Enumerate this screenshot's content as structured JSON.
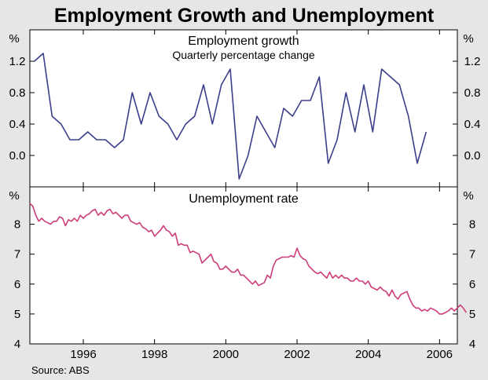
{
  "chart_data": {
    "title": "Employment Growth and Unemployment",
    "source": "Source: ABS",
    "x_ticks": [
      "1996",
      "1998",
      "2000",
      "2002",
      "2004",
      "2006"
    ],
    "x_range": [
      1994.5,
      2006.5
    ],
    "colors": {
      "growth_line": "#3b3e8a",
      "unemployment_line": "#cc3d7a",
      "background": "#e6e6e6"
    },
    "panels": [
      {
        "type": "line",
        "title": "Employment growth",
        "subtitle": "Quarterly percentage change",
        "unit_label": "%",
        "ylim": [
          -0.4,
          1.6
        ],
        "y_ticks": [
          "1.2",
          "0.8",
          "0.4",
          "0.0"
        ],
        "series": [
          {
            "name": "Employment growth",
            "x": [
              1994.625,
              1994.875,
              1995.125,
              1995.375,
              1995.625,
              1995.875,
              1996.125,
              1996.375,
              1996.625,
              1996.875,
              1997.125,
              1997.375,
              1997.625,
              1997.875,
              1998.125,
              1998.375,
              1998.625,
              1998.875,
              1999.125,
              1999.375,
              1999.625,
              1999.875,
              2000.125,
              2000.375,
              2000.625,
              2000.875,
              2001.125,
              2001.375,
              2001.625,
              2001.875,
              2002.125,
              2002.375,
              2002.625,
              2002.875,
              2003.125,
              2003.375,
              2003.625,
              2003.875,
              2004.125,
              2004.375,
              2004.625,
              2004.875,
              2005.125,
              2005.375,
              2005.625,
              2005.875
            ],
            "values": [
              1.2,
              1.3,
              0.5,
              0.4,
              0.2,
              0.2,
              0.3,
              0.2,
              0.2,
              0.1,
              0.2,
              0.8,
              0.4,
              0.8,
              0.5,
              0.4,
              0.2,
              0.4,
              0.5,
              0.9,
              0.4,
              0.9,
              1.1,
              -0.3,
              0.0,
              0.5,
              0.3,
              0.1,
              0.6,
              0.5,
              0.7,
              0.7,
              1.0,
              -0.1,
              0.2,
              0.8,
              0.3,
              0.9,
              0.3,
              1.1,
              1.0,
              0.9,
              0.5,
              -0.1,
              0.3,
              null
            ]
          }
        ]
      },
      {
        "type": "line",
        "title": "Unemployment rate",
        "unit_label": "%",
        "ylim": [
          4,
          9.25
        ],
        "y_ticks": [
          "8",
          "7",
          "6",
          "5",
          "4"
        ],
        "series": [
          {
            "name": "Unemployment rate",
            "x_start": 1994.5,
            "x_step": 0.08333,
            "values": [
              8.7,
              8.6,
              8.3,
              8.1,
              8.2,
              8.1,
              8.05,
              8.0,
              8.1,
              8.1,
              8.25,
              8.2,
              7.95,
              8.15,
              8.1,
              8.2,
              8.1,
              8.3,
              8.2,
              8.3,
              8.35,
              8.45,
              8.5,
              8.3,
              8.4,
              8.3,
              8.45,
              8.5,
              8.35,
              8.4,
              8.3,
              8.2,
              8.3,
              8.3,
              8.1,
              8.05,
              8.0,
              8.05,
              7.9,
              7.85,
              7.75,
              7.8,
              7.6,
              7.7,
              7.8,
              7.95,
              7.8,
              7.75,
              7.6,
              7.7,
              7.3,
              7.35,
              7.3,
              7.3,
              7.05,
              7.1,
              7.05,
              7.0,
              6.7,
              6.8,
              6.9,
              7.0,
              6.75,
              6.7,
              6.5,
              6.5,
              6.6,
              6.5,
              6.4,
              6.4,
              6.5,
              6.3,
              6.3,
              6.2,
              6.1,
              6.0,
              6.1,
              5.95,
              6.0,
              6.05,
              6.3,
              6.2,
              6.6,
              6.8,
              6.85,
              6.9,
              6.9,
              6.9,
              6.95,
              6.9,
              7.2,
              6.95,
              6.85,
              6.8,
              6.6,
              6.5,
              6.4,
              6.35,
              6.4,
              6.3,
              6.2,
              6.4,
              6.2,
              6.3,
              6.2,
              6.3,
              6.2,
              6.2,
              6.1,
              6.1,
              6.2,
              6.1,
              6.1,
              6.0,
              6.1,
              5.9,
              5.85,
              5.8,
              5.9,
              5.8,
              5.75,
              5.6,
              5.8,
              5.6,
              5.5,
              5.65,
              5.7,
              5.75,
              5.5,
              5.3,
              5.2,
              5.2,
              5.1,
              5.15,
              5.1,
              5.2,
              5.15,
              5.1,
              5.0,
              5.0,
              5.05,
              5.1,
              5.2,
              5.1,
              5.2,
              5.3,
              5.2,
              5.05
            ]
          }
        ]
      }
    ]
  }
}
